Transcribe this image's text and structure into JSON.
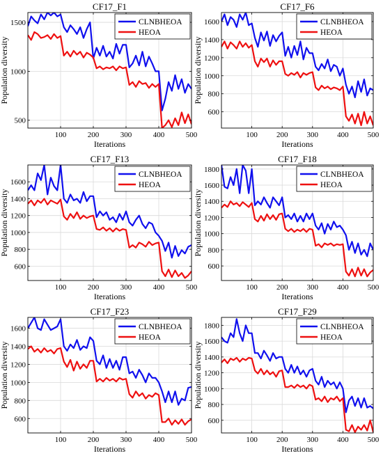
{
  "figure": {
    "colors": {
      "CLNBHEOA": "#1010ee",
      "HEOA": "#ee1010",
      "grid": "#d9d9d9",
      "axes": "#000000"
    }
  },
  "chart_data": [
    {
      "type": "line",
      "title": "CF17_F1",
      "xlabel": "Iterations",
      "ylabel": "Population diversity",
      "xlim": [
        0,
        500
      ],
      "ylim": [
        420,
        1600
      ],
      "xticks": [
        100,
        200,
        300,
        400,
        500
      ],
      "yticks": [
        500,
        1000,
        1500
      ],
      "grid": true,
      "legend": "top-right",
      "x": [
        0,
        10,
        20,
        30,
        40,
        50,
        60,
        70,
        80,
        90,
        100,
        110,
        120,
        130,
        140,
        150,
        160,
        170,
        180,
        190,
        200,
        210,
        220,
        230,
        240,
        250,
        260,
        270,
        280,
        290,
        300,
        310,
        320,
        330,
        340,
        350,
        360,
        370,
        380,
        390,
        400,
        410,
        420,
        430,
        440,
        450,
        460,
        470,
        480,
        490,
        500
      ],
      "series": [
        {
          "name": "CLNBHEOA",
          "color": "#1010ee",
          "values": [
            1460,
            1560,
            1520,
            1490,
            1580,
            1530,
            1600,
            1570,
            1600,
            1560,
            1580,
            1450,
            1400,
            1470,
            1430,
            1380,
            1450,
            1340,
            1430,
            1500,
            1130,
            1240,
            1160,
            1260,
            1150,
            1200,
            1130,
            1280,
            1180,
            1270,
            1270,
            1040,
            1080,
            1160,
            1060,
            1200,
            1050,
            1150,
            1080,
            1000,
            1000,
            600,
            720,
            890,
            800,
            960,
            820,
            920,
            780,
            870,
            820
          ]
        },
        {
          "name": "HEOA",
          "color": "#ee1010",
          "values": [
            1370,
            1320,
            1400,
            1380,
            1340,
            1350,
            1370,
            1330,
            1380,
            1340,
            1360,
            1160,
            1200,
            1150,
            1210,
            1170,
            1200,
            1140,
            1190,
            1170,
            1140,
            1030,
            1050,
            1020,
            1040,
            1030,
            1050,
            1010,
            1050,
            1030,
            1040,
            860,
            890,
            840,
            900,
            870,
            880,
            830,
            870,
            840,
            870,
            420,
            450,
            500,
            430,
            520,
            450,
            580,
            470,
            560,
            460
          ]
        }
      ]
    },
    {
      "type": "line",
      "title": "CF17_F6",
      "xlabel": "Iterations",
      "ylabel": "Population diversity",
      "xlim": [
        0,
        500
      ],
      "ylim": [
        420,
        1700
      ],
      "xticks": [
        100,
        200,
        300,
        400,
        500
      ],
      "yticks": [
        600,
        800,
        1000,
        1200,
        1400,
        1600
      ],
      "grid": true,
      "legend": "top-right",
      "x": [
        0,
        10,
        20,
        30,
        40,
        50,
        60,
        70,
        80,
        90,
        100,
        110,
        120,
        130,
        140,
        150,
        160,
        170,
        180,
        190,
        200,
        210,
        220,
        230,
        240,
        250,
        260,
        270,
        280,
        290,
        300,
        310,
        320,
        330,
        340,
        350,
        360,
        370,
        380,
        390,
        400,
        410,
        420,
        430,
        440,
        450,
        460,
        470,
        480,
        490,
        500
      ],
      "series": [
        {
          "name": "CLNBHEOA",
          "color": "#1010ee",
          "values": [
            1600,
            1680,
            1560,
            1650,
            1620,
            1540,
            1680,
            1620,
            1700,
            1560,
            1580,
            1420,
            1320,
            1480,
            1390,
            1490,
            1330,
            1450,
            1380,
            1440,
            1480,
            1220,
            1320,
            1200,
            1330,
            1230,
            1380,
            1180,
            1310,
            1250,
            1250,
            1100,
            1060,
            1130,
            1080,
            1180,
            1050,
            1120,
            1100,
            1000,
            1080,
            900,
            800,
            880,
            760,
            940,
            820,
            960,
            780,
            860,
            840
          ]
        },
        {
          "name": "HEOA",
          "color": "#ee1010",
          "values": [
            1320,
            1380,
            1300,
            1370,
            1340,
            1300,
            1380,
            1320,
            1360,
            1310,
            1340,
            1160,
            1100,
            1190,
            1150,
            1190,
            1100,
            1170,
            1120,
            1160,
            1160,
            1020,
            1000,
            1030,
            1010,
            1040,
            980,
            1030,
            1010,
            1030,
            1040,
            870,
            840,
            890,
            860,
            880,
            850,
            870,
            860,
            840,
            880,
            550,
            500,
            570,
            470,
            580,
            450,
            600,
            470,
            550,
            450
          ]
        }
      ]
    },
    {
      "type": "line",
      "title": "CF17_F13",
      "xlabel": "Iterations",
      "ylabel": "Population diversity",
      "xlim": [
        0,
        500
      ],
      "ylim": [
        430,
        1800
      ],
      "xticks": [
        100,
        200,
        300,
        400,
        500
      ],
      "yticks": [
        600,
        800,
        1000,
        1200,
        1400,
        1600
      ],
      "grid": true,
      "legend": "top-right",
      "x": [
        0,
        10,
        20,
        30,
        40,
        50,
        60,
        70,
        80,
        90,
        100,
        110,
        120,
        130,
        140,
        150,
        160,
        170,
        180,
        190,
        200,
        210,
        220,
        230,
        240,
        250,
        260,
        270,
        280,
        290,
        300,
        310,
        320,
        330,
        340,
        350,
        360,
        370,
        380,
        390,
        400,
        410,
        420,
        430,
        440,
        450,
        460,
        470,
        480,
        490,
        500
      ],
      "series": [
        {
          "name": "CLNBHEOA",
          "color": "#1010ee",
          "values": [
            1500,
            1560,
            1500,
            1700,
            1620,
            1800,
            1450,
            1650,
            1550,
            1500,
            1800,
            1400,
            1350,
            1450,
            1380,
            1400,
            1350,
            1480,
            1370,
            1430,
            1430,
            1180,
            1250,
            1200,
            1240,
            1150,
            1180,
            1120,
            1220,
            1150,
            1250,
            1120,
            1080,
            1150,
            1200,
            1100,
            1050,
            1120,
            1100,
            1000,
            960,
            900,
            780,
            880,
            700,
            840,
            720,
            790,
            750,
            830,
            850
          ]
        },
        {
          "name": "HEOA",
          "color": "#ee1010",
          "values": [
            1340,
            1380,
            1320,
            1380,
            1350,
            1400,
            1330,
            1380,
            1360,
            1340,
            1390,
            1190,
            1150,
            1220,
            1170,
            1240,
            1160,
            1200,
            1170,
            1190,
            1200,
            1040,
            1030,
            1060,
            1020,
            1050,
            1010,
            1050,
            1020,
            1040,
            1030,
            820,
            850,
            820,
            880,
            860,
            830,
            890,
            850,
            870,
            880,
            540,
            480,
            560,
            470,
            550,
            480,
            520,
            460,
            490,
            540
          ]
        }
      ]
    },
    {
      "type": "line",
      "title": "CF17_F18",
      "xlabel": "Iterations",
      "ylabel": "Population diversity",
      "xlim": [
        0,
        500
      ],
      "ylim": [
        420,
        1850
      ],
      "xticks": [
        100,
        200,
        300,
        400,
        500
      ],
      "yticks": [
        600,
        800,
        1000,
        1200,
        1400,
        1600,
        1800
      ],
      "grid": true,
      "legend": "top-right",
      "x": [
        0,
        10,
        20,
        30,
        40,
        50,
        60,
        70,
        80,
        90,
        100,
        110,
        120,
        130,
        140,
        150,
        160,
        170,
        180,
        190,
        200,
        210,
        220,
        230,
        240,
        250,
        260,
        270,
        280,
        290,
        300,
        310,
        320,
        330,
        340,
        350,
        360,
        370,
        380,
        390,
        400,
        410,
        420,
        430,
        440,
        450,
        460,
        470,
        480,
        490,
        500
      ],
      "series": [
        {
          "name": "CLNBHEOA",
          "color": "#1010ee",
          "values": [
            1850,
            1580,
            1560,
            1700,
            1600,
            1800,
            1500,
            1850,
            1780,
            1500,
            1800,
            1350,
            1400,
            1360,
            1450,
            1380,
            1320,
            1450,
            1400,
            1350,
            1450,
            1200,
            1230,
            1180,
            1250,
            1150,
            1220,
            1150,
            1250,
            1180,
            1250,
            1100,
            1050,
            1130,
            1000,
            1120,
            1050,
            1150,
            1080,
            1100,
            1050,
            980,
            800,
            900,
            760,
            880,
            740,
            800,
            720,
            880,
            800
          ]
        },
        {
          "name": "HEOA",
          "color": "#ee1010",
          "values": [
            1320,
            1360,
            1330,
            1400,
            1360,
            1380,
            1340,
            1390,
            1360,
            1330,
            1380,
            1180,
            1150,
            1220,
            1160,
            1240,
            1180,
            1230,
            1170,
            1240,
            1250,
            1060,
            1030,
            1060,
            1020,
            1050,
            1030,
            1060,
            1020,
            1060,
            1050,
            850,
            870,
            830,
            880,
            860,
            880,
            850,
            870,
            860,
            870,
            530,
            480,
            560,
            470,
            580,
            480,
            560,
            470,
            520,
            550
          ]
        }
      ]
    },
    {
      "type": "line",
      "title": "CF17_F23",
      "xlabel": "Iterations",
      "ylabel": "Population diversity",
      "xlim": [
        0,
        500
      ],
      "ylim": [
        440,
        1720
      ],
      "xticks": [
        100,
        200,
        300,
        400,
        500
      ],
      "yticks": [
        600,
        800,
        1000,
        1200,
        1400,
        1600
      ],
      "grid": true,
      "legend": "top-right",
      "x": [
        0,
        10,
        20,
        30,
        40,
        50,
        60,
        70,
        80,
        90,
        100,
        110,
        120,
        130,
        140,
        150,
        160,
        170,
        180,
        190,
        200,
        210,
        220,
        230,
        240,
        250,
        260,
        270,
        280,
        290,
        300,
        310,
        320,
        330,
        340,
        350,
        360,
        370,
        380,
        390,
        400,
        410,
        420,
        430,
        440,
        450,
        460,
        470,
        480,
        490,
        500
      ],
      "series": [
        {
          "name": "CLNBHEOA",
          "color": "#1010ee",
          "values": [
            1600,
            1660,
            1720,
            1600,
            1580,
            1700,
            1640,
            1580,
            1600,
            1620,
            1700,
            1400,
            1350,
            1420,
            1380,
            1470,
            1360,
            1400,
            1380,
            1500,
            1460,
            1240,
            1200,
            1300,
            1160,
            1260,
            1160,
            1240,
            1140,
            1280,
            1280,
            1100,
            1120,
            1050,
            1140,
            1080,
            1000,
            1100,
            1050,
            1050,
            1000,
            900,
            780,
            900,
            780,
            900,
            750,
            820,
            800,
            940,
            950
          ]
        },
        {
          "name": "HEOA",
          "color": "#ee1010",
          "values": [
            1370,
            1400,
            1340,
            1370,
            1330,
            1380,
            1340,
            1360,
            1320,
            1370,
            1380,
            1230,
            1170,
            1250,
            1130,
            1230,
            1150,
            1200,
            1160,
            1240,
            1240,
            1010,
            1040,
            1010,
            1050,
            1020,
            1040,
            1010,
            1050,
            1030,
            1040,
            870,
            830,
            900,
            850,
            880,
            820,
            860,
            840,
            880,
            860,
            560,
            560,
            600,
            530,
            580,
            540,
            590,
            530,
            570,
            590
          ]
        }
      ]
    },
    {
      "type": "line",
      "title": "CF17_F29",
      "xlabel": "Iterations",
      "ylabel": "Population diversity",
      "xlim": [
        0,
        500
      ],
      "ylim": [
        440,
        1900
      ],
      "xticks": [
        100,
        200,
        300,
        400,
        500
      ],
      "yticks": [
        600,
        800,
        1000,
        1200,
        1400,
        1600,
        1800
      ],
      "grid": true,
      "legend": "top-right",
      "x": [
        0,
        10,
        20,
        30,
        40,
        50,
        60,
        70,
        80,
        90,
        100,
        110,
        120,
        130,
        140,
        150,
        160,
        170,
        180,
        190,
        200,
        210,
        220,
        230,
        240,
        250,
        260,
        270,
        280,
        290,
        300,
        310,
        320,
        330,
        340,
        350,
        360,
        370,
        380,
        390,
        400,
        410,
        420,
        430,
        440,
        450,
        460,
        470,
        480,
        490,
        500
      ],
      "series": [
        {
          "name": "CLNBHEOA",
          "color": "#1010ee",
          "values": [
            1650,
            1600,
            1580,
            1700,
            1650,
            1880,
            1700,
            1600,
            1800,
            1700,
            1700,
            1450,
            1450,
            1380,
            1480,
            1420,
            1350,
            1450,
            1380,
            1400,
            1400,
            1250,
            1200,
            1300,
            1200,
            1280,
            1180,
            1230,
            1150,
            1230,
            1250,
            1100,
            1050,
            1150,
            1020,
            1100,
            1050,
            1080,
            1000,
            1080,
            1000,
            700,
            850,
            900,
            780,
            880,
            760,
            880,
            760,
            780,
            750
          ]
        },
        {
          "name": "HEOA",
          "color": "#ee1010",
          "values": [
            1330,
            1370,
            1320,
            1380,
            1360,
            1390,
            1340,
            1380,
            1360,
            1390,
            1380,
            1230,
            1190,
            1250,
            1180,
            1230,
            1180,
            1210,
            1150,
            1220,
            1230,
            1020,
            1020,
            1040,
            1010,
            1050,
            1020,
            1040,
            1000,
            1050,
            1030,
            860,
            880,
            840,
            900,
            830,
            880,
            860,
            900,
            840,
            880,
            480,
            460,
            540,
            450,
            520,
            480,
            540,
            470,
            600,
            450
          ]
        }
      ]
    }
  ]
}
